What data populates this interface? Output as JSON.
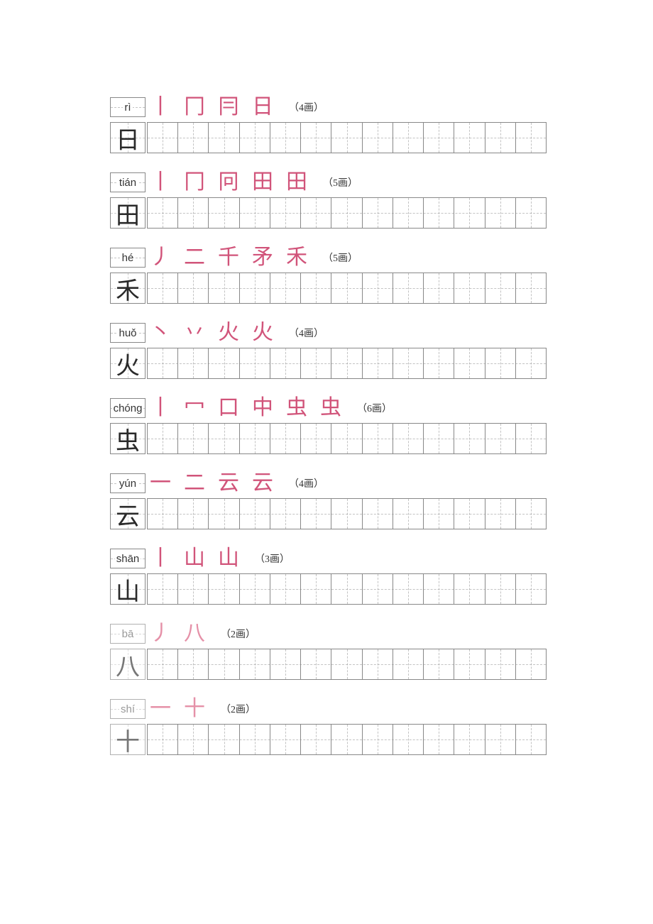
{
  "colors": {
    "border_gray": "#888888",
    "border_light": "#b0b0b0",
    "stroke_pink": "#d1547a",
    "stroke_light": "#e591a8",
    "char_dark": "#2a2a2a",
    "char_gray": "#777777",
    "pinyin_text": "#333333",
    "pinyin_gray": "#999999",
    "count_text": "#333333"
  },
  "layout": {
    "practice_cells": 13
  },
  "entries": [
    {
      "pinyin": "rì",
      "pinyin_color": "#333333",
      "pinyin_border": "#888888",
      "character": "日",
      "char_color": "#2a2a2a",
      "char_border": "#888888",
      "grid_border": "#888888",
      "strokes": [
        "丨",
        "冂",
        "冃",
        "日"
      ],
      "stroke_color": "#d1547a",
      "stroke_count_label": "（4画）"
    },
    {
      "pinyin": "tián",
      "pinyin_color": "#333333",
      "pinyin_border": "#888888",
      "character": "田",
      "char_color": "#2a2a2a",
      "char_border": "#888888",
      "grid_border": "#888888",
      "strokes": [
        "丨",
        "冂",
        "冋",
        "田",
        "田"
      ],
      "stroke_color": "#d1547a",
      "stroke_count_label": "（5画）"
    },
    {
      "pinyin": "hé",
      "pinyin_color": "#333333",
      "pinyin_border": "#888888",
      "character": "禾",
      "char_color": "#2a2a2a",
      "char_border": "#888888",
      "grid_border": "#888888",
      "strokes": [
        "丿",
        "二",
        "千",
        "矛",
        "禾"
      ],
      "stroke_color": "#d1547a",
      "stroke_count_label": "（5画）"
    },
    {
      "pinyin": "huǒ",
      "pinyin_color": "#333333",
      "pinyin_border": "#888888",
      "character": "火",
      "char_color": "#2a2a2a",
      "char_border": "#888888",
      "grid_border": "#888888",
      "strokes": [
        "丶",
        "丷",
        "火",
        "火"
      ],
      "stroke_color": "#d1547a",
      "stroke_count_label": "（4画）"
    },
    {
      "pinyin": "chóng",
      "pinyin_color": "#333333",
      "pinyin_border": "#888888",
      "character": "虫",
      "char_color": "#2a2a2a",
      "char_border": "#888888",
      "grid_border": "#888888",
      "strokes": [
        "丨",
        "冖",
        "口",
        "中",
        "虫",
        "虫"
      ],
      "stroke_color": "#d1547a",
      "stroke_count_label": "（6画）"
    },
    {
      "pinyin": "yún",
      "pinyin_color": "#333333",
      "pinyin_border": "#888888",
      "character": "云",
      "char_color": "#2a2a2a",
      "char_border": "#888888",
      "grid_border": "#888888",
      "strokes": [
        "一",
        "二",
        "云",
        "云"
      ],
      "stroke_color": "#d1547a",
      "stroke_count_label": "（4画）"
    },
    {
      "pinyin": "shān",
      "pinyin_color": "#333333",
      "pinyin_border": "#888888",
      "character": "山",
      "char_color": "#2a2a2a",
      "char_border": "#888888",
      "grid_border": "#888888",
      "strokes": [
        "丨",
        "山",
        "山"
      ],
      "stroke_color": "#d1547a",
      "stroke_count_label": "（3画）"
    },
    {
      "pinyin": "bā",
      "pinyin_color": "#999999",
      "pinyin_border": "#b0b0b0",
      "character": "八",
      "char_color": "#777777",
      "char_border": "#b0b0b0",
      "grid_border": "#888888",
      "strokes": [
        "丿",
        "八"
      ],
      "stroke_color": "#e591a8",
      "stroke_count_label": "（2画）"
    },
    {
      "pinyin": "shí",
      "pinyin_color": "#999999",
      "pinyin_border": "#b0b0b0",
      "character": "十",
      "char_color": "#777777",
      "char_border": "#b0b0b0",
      "grid_border": "#888888",
      "strokes": [
        "一",
        "十"
      ],
      "stroke_color": "#e591a8",
      "stroke_count_label": "（2画）"
    }
  ]
}
